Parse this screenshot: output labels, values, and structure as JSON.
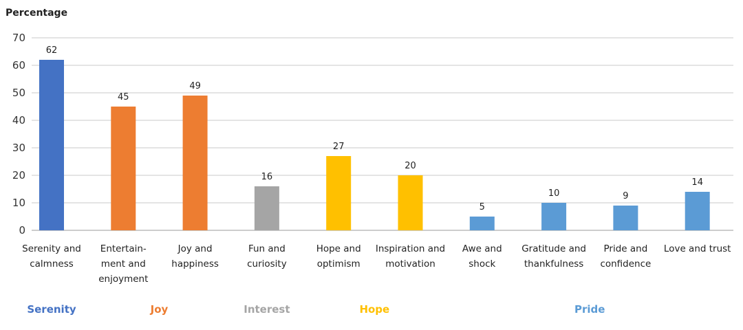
{
  "chart_data": {
    "type": "bar",
    "ylabel": "Percentage",
    "ylim": [
      0,
      70
    ],
    "yticks": [
      0,
      10,
      20,
      30,
      40,
      50,
      60,
      70
    ],
    "grid": true,
    "categories": [
      [
        "Serenity and",
        "calmness"
      ],
      [
        "Entertain-",
        "ment and",
        "enjoyment"
      ],
      [
        "Joy and",
        "happiness"
      ],
      [
        "Fun and",
        "curiosity"
      ],
      [
        "Hope and",
        "optimism"
      ],
      [
        "Inspiration and",
        "motivation"
      ],
      [
        "Awe and",
        "shock"
      ],
      [
        "Gratitude and",
        "thankfulness"
      ],
      [
        "Pride and",
        "confidence"
      ],
      [
        "Love and trust"
      ]
    ],
    "values": [
      62,
      45,
      49,
      16,
      27,
      20,
      5,
      10,
      9,
      14
    ],
    "bar_groups": [
      "Serenity",
      "Joy",
      "Joy",
      "Interest",
      "Hope",
      "Hope",
      "Pride",
      "Pride",
      "Pride",
      "Pride"
    ],
    "groups": [
      {
        "name": "Serenity",
        "color": "#4472C4",
        "span": [
          0,
          0
        ]
      },
      {
        "name": "Joy",
        "color": "#ED7D31",
        "span": [
          1,
          2
        ]
      },
      {
        "name": "Interest",
        "color": "#A5A5A5",
        "span": [
          3,
          3
        ]
      },
      {
        "name": "Hope",
        "color": "#FFC000",
        "span": [
          4,
          5
        ]
      },
      {
        "name": "Pride",
        "color": "#5B9BD5",
        "span": [
          6,
          9
        ]
      }
    ]
  }
}
